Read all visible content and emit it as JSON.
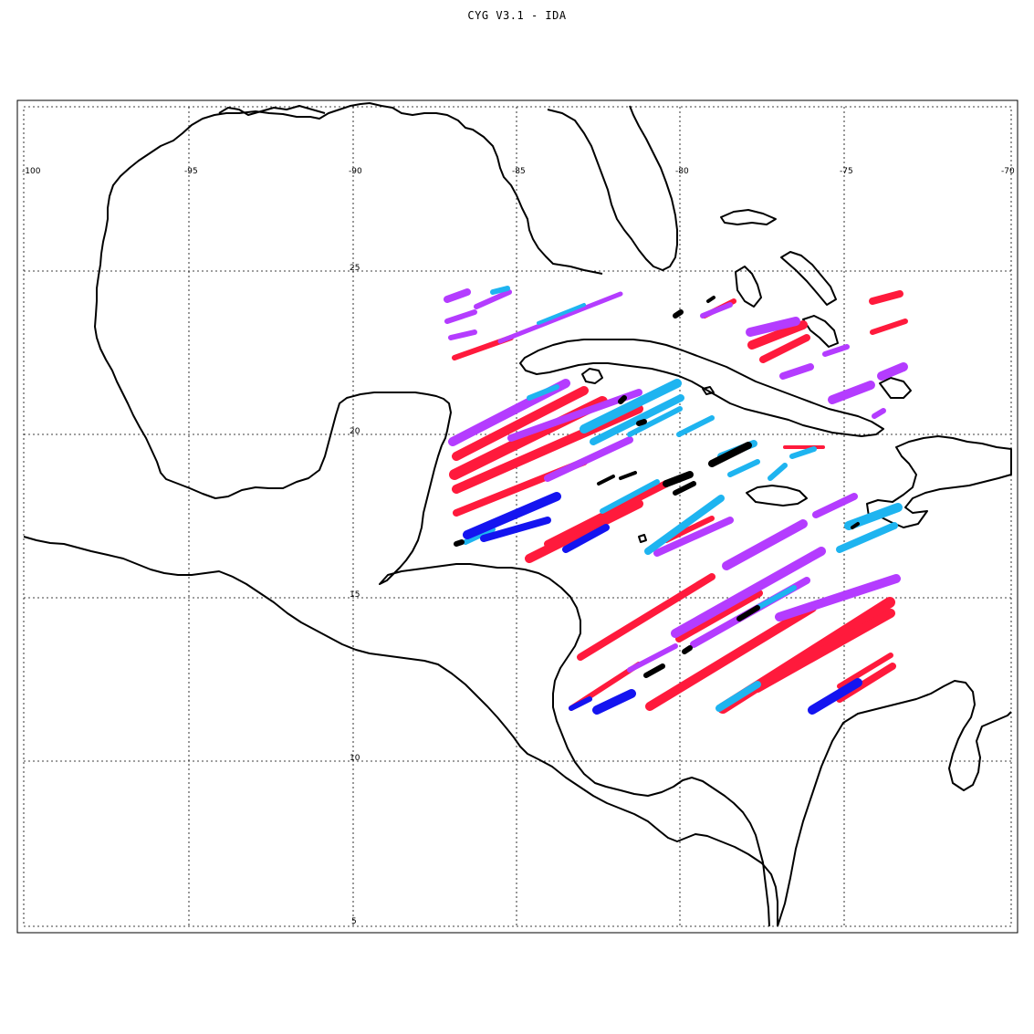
{
  "title": "CYG V3.1  -  IDA",
  "axes": {
    "lon_ticks": [
      "-100",
      "-95",
      "-90",
      "-85",
      "-80",
      "-75",
      "-70"
    ],
    "lat_ticks": [
      "25",
      "20",
      "15",
      "10",
      "5"
    ]
  },
  "colors": {
    "series_1": "#ff1a3c",
    "series_2": "#b43cff",
    "series_3": "#1eb4f0",
    "series_4": "#1414f0",
    "series_5": "#000000"
  },
  "legend": "none",
  "grid": "dotted"
}
